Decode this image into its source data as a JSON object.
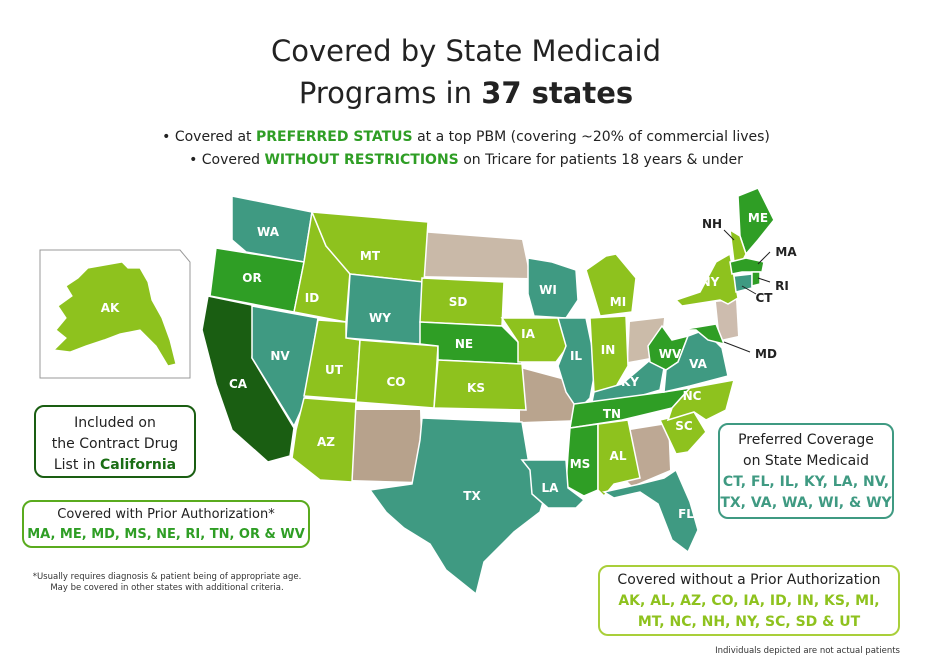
{
  "title": {
    "line1": "Covered by State Medicaid",
    "line2_prefix": "Programs in ",
    "line2_bold": "37 states"
  },
  "bullets": [
    {
      "prefix": "• Covered at ",
      "highlight": "PREFERRED STATUS",
      "suffix": " at a top PBM (covering ~20% of commercial lives)"
    },
    {
      "prefix": "• Covered ",
      "highlight": "WITHOUT RESTRICTIONS",
      "suffix": " on Tricare for patients 18 years & under"
    }
  ],
  "colors": {
    "preferred_teal": "#3f9a82",
    "no_pa_light_green": "#8ec21e",
    "prior_auth_green": "#2f9e25",
    "contract_dark_green": "#1a5e12",
    "photo_states": "#c9b9a8"
  },
  "states": {
    "AK": "AK",
    "WA": "WA",
    "OR": "OR",
    "CA": "CA",
    "NV": "NV",
    "ID": "ID",
    "MT": "MT",
    "WY": "WY",
    "UT": "UT",
    "AZ": "AZ",
    "CO": "CO",
    "SD": "SD",
    "NE": "NE",
    "KS": "KS",
    "TX": "TX",
    "IA": "IA",
    "WI": "WI",
    "IL": "IL",
    "MI": "MI",
    "IN": "IN",
    "KY": "KY",
    "TN": "TN",
    "MS": "MS",
    "AL": "AL",
    "LA": "LA",
    "FL": "FL",
    "WV": "WV",
    "VA": "VA",
    "NC": "NC",
    "SC": "SC",
    "NY": "NY",
    "ME": "ME",
    "NH": "NH",
    "MA": "MA",
    "RI": "RI",
    "CT": "CT",
    "MD": "MD"
  },
  "box_contract": {
    "line1": "Included on",
    "line2": "the Contract Drug",
    "line3_prefix": "List in ",
    "line3_state": "California"
  },
  "box_prior_auth": {
    "head": "Covered with Prior Authorization*",
    "states": "MA, ME, MD, MS, NE, RI, TN, OR & WV"
  },
  "box_preferred": {
    "head1": "Preferred Coverage",
    "head2": "on State Medicaid",
    "states1": "CT, FL, IL, KY, LA, NV,",
    "states2": "TX, VA, WA, WI, & WY"
  },
  "box_no_pa": {
    "head": "Covered without a Prior Authorization",
    "states1": "AK, AL, AZ, CO, IA, ID, IN, KS, MI,",
    "states2": "MT, NC, NH, NY, SC, SD & UT"
  },
  "footnote": {
    "line1": "*Usually requires diagnosis & patient being of appropriate age.",
    "line2": "May be covered in other states with additional criteria."
  },
  "disclaimer": "Individuals depicted are not actual patients"
}
